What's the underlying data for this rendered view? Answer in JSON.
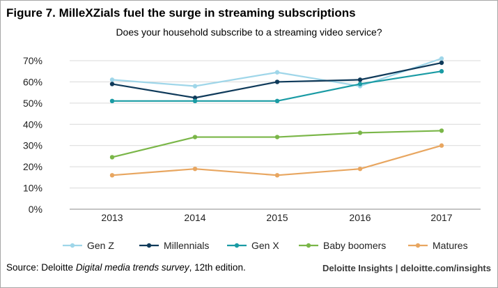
{
  "figure": {
    "title": "Figure 7. MilleXZials fuel the surge in streaming subscriptions",
    "question": "Does your household subscribe to a streaming video service?",
    "source_prefix": "Source: Deloitte ",
    "source_italic": "Digital media trends survey",
    "source_suffix": ", 12th edition.",
    "brand": "Deloitte Insights | deloitte.com/insights"
  },
  "chart_data": {
    "type": "line",
    "title": "Figure 7. MilleXZials fuel the surge in streaming subscriptions",
    "subtitle": "Does your household subscribe to a streaming video service?",
    "xlabel": "",
    "ylabel": "",
    "x": [
      "2013",
      "2014",
      "2015",
      "2016",
      "2017"
    ],
    "ylim": [
      0,
      70
    ],
    "yticks": [
      "0%",
      "10%",
      "20%",
      "30%",
      "40%",
      "50%",
      "60%",
      "70%"
    ],
    "grid": true,
    "legend_position": "bottom",
    "series": [
      {
        "name": "Gen Z",
        "color": "#9fd6e9",
        "values": [
          61,
          58,
          64.5,
          58,
          71
        ]
      },
      {
        "name": "Millennials",
        "color": "#0f3a5a",
        "values": [
          59,
          52.5,
          60,
          61,
          69
        ]
      },
      {
        "name": "Gen X",
        "color": "#1a9ba4",
        "values": [
          51,
          51,
          51,
          59,
          65
        ]
      },
      {
        "name": "Baby boomers",
        "color": "#7ab648",
        "values": [
          24.5,
          34,
          34,
          36,
          37
        ]
      },
      {
        "name": "Matures",
        "color": "#e8a660",
        "values": [
          16,
          19,
          16,
          19,
          30
        ]
      }
    ]
  }
}
